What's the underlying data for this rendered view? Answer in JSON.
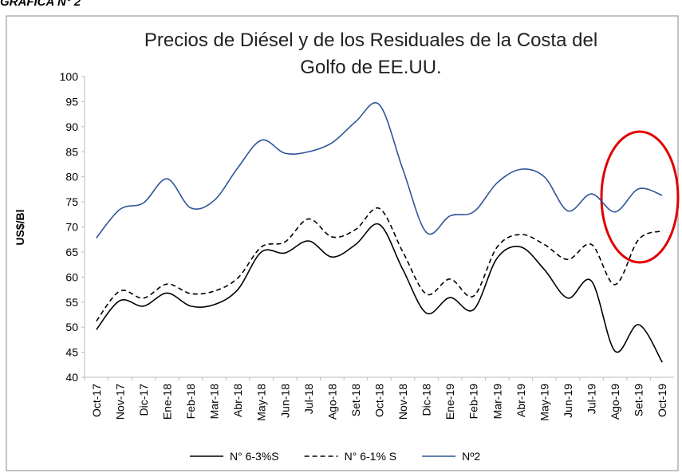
{
  "header": "GRÁFICA N° 2",
  "chart_data": {
    "type": "line",
    "title": "Precios de Diésel y de los Residuales de la Costa del Golfo de EE.UU.",
    "y_label": "US$/Bl",
    "categories": [
      "Oct-17",
      "Nov-17",
      "Dic-17",
      "Ene-18",
      "Feb-18",
      "Mar-18",
      "Abr-18",
      "May-18",
      "Jun-18",
      "Jul-18",
      "Ago-18",
      "Set-18",
      "Oct-18",
      "Nov-18",
      "Dic-18",
      "Ene-19",
      "Feb-19",
      "Mar-19",
      "Abr-19",
      "May-19",
      "Jun-19",
      "Jul-19",
      "Ago-19",
      "Set-19",
      "Oct-19"
    ],
    "series": [
      {
        "name": "N° 6-3%S",
        "color": "#000000",
        "line_style": "solid",
        "values": [
          49.5,
          55.3,
          54.2,
          56.8,
          54.2,
          54.5,
          57.5,
          65.0,
          64.8,
          67.2,
          64.0,
          66.5,
          70.5,
          61.5,
          52.8,
          55.9,
          53.5,
          63.8,
          66.0,
          61.5,
          55.8,
          59.2,
          45.2,
          50.5,
          43.0
        ]
      },
      {
        "name": "N° 6-1% S",
        "color": "#000000",
        "line_style": "dashed",
        "values": [
          51.2,
          57.2,
          55.8,
          58.6,
          56.7,
          57.2,
          59.8,
          66.0,
          67.0,
          71.6,
          68.0,
          69.5,
          73.7,
          65.0,
          56.6,
          59.6,
          56.2,
          66.0,
          68.5,
          66.5,
          63.5,
          66.5,
          58.5,
          67.5,
          69.2
        ]
      },
      {
        "name": "Nº2",
        "color": "#2f5597",
        "line_style": "solid",
        "values": [
          67.8,
          73.5,
          74.8,
          79.6,
          73.8,
          75.3,
          81.8,
          87.3,
          84.7,
          85.0,
          86.8,
          91.0,
          94.4,
          81.5,
          68.9,
          72.2,
          73.0,
          78.8,
          81.5,
          80.0,
          73.2,
          76.6,
          73.0,
          77.6,
          76.3
        ]
      }
    ],
    "ylim": [
      40,
      100
    ],
    "yticks": [
      40,
      45,
      50,
      55,
      60,
      65,
      70,
      75,
      80,
      85,
      90,
      95,
      100
    ],
    "grid": false,
    "smooth": true,
    "legend": "bottom"
  }
}
